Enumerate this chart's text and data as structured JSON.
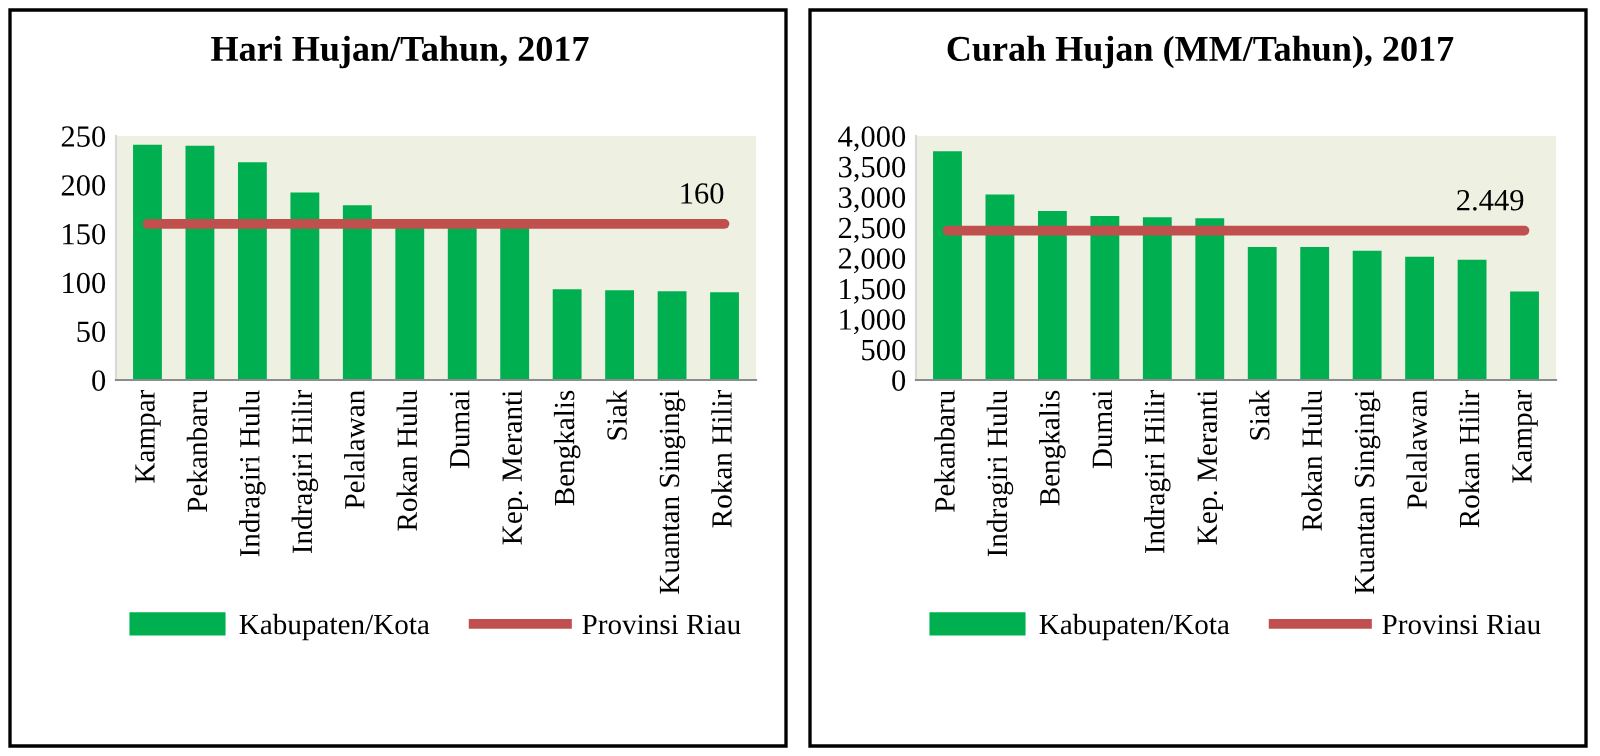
{
  "chart_data": [
    {
      "type": "bar",
      "title": "Hari Hujan/Tahun, 2017",
      "categories": [
        "Kampar",
        "Pekanbaru",
        "Indragiri Hulu",
        "Indragiri Hilir",
        "Pelalawan",
        "Rokan Hulu",
        "Dumai",
        "Kep. Meranti",
        "Bengkalis",
        "Siak",
        "Kuantan Singingi",
        "Rokan Hilir"
      ],
      "series": [
        {
          "name": "Kabupaten/Kota",
          "color": "#00b050",
          "values": [
            241,
            240,
            223,
            192,
            179,
            160,
            160,
            160,
            93,
            92,
            91,
            90
          ]
        },
        {
          "name": "Provinsi Riau",
          "type": "line",
          "color": "#c0504d",
          "values": [
            160,
            160,
            160,
            160,
            160,
            160,
            160,
            160,
            160,
            160,
            160,
            160
          ],
          "value_labels": [
            null,
            null,
            null,
            null,
            null,
            null,
            null,
            null,
            null,
            null,
            null,
            "160"
          ]
        }
      ],
      "ylim": [
        0,
        250
      ],
      "yticks": [
        0,
        50,
        100,
        150,
        200,
        250
      ],
      "grid": false,
      "legend": "bottom",
      "marker": "none"
    },
    {
      "type": "bar",
      "title": "Curah Hujan (MM/Tahun), 2017",
      "categories": [
        "Pekanbaru",
        "Indragiri Hulu",
        "Bengkalis",
        "Dumai",
        "Indragiri Hilir",
        "Kep. Meranti",
        "Siak",
        "Rokan Hulu",
        "Kuantan Singingi",
        "Pelalawan",
        "Rokan Hilir",
        "Kampar"
      ],
      "series": [
        {
          "name": "Kabupaten/Kota",
          "color": "#00b050",
          "values": [
            3750,
            3040,
            2770,
            2690,
            2670,
            2650,
            2180,
            2180,
            2120,
            2020,
            1970,
            1450
          ]
        },
        {
          "name": "Provinsi Riau",
          "type": "line",
          "color": "#c0504d",
          "values": [
            2449,
            2449,
            2449,
            2449,
            2449,
            2449,
            2449,
            2449,
            2449,
            2449,
            2449,
            2449
          ]
        }
      ],
      "annotations": [
        "2.449"
      ],
      "ylim": [
        0,
        4000
      ],
      "yticks": [
        0,
        {
          "value": 500,
          "label": "500"
        },
        {
          "value": 1000,
          "label": "1,000"
        },
        {
          "value": 1500,
          "label": "1,500"
        },
        {
          "value": 2000,
          "label": "2,000"
        },
        {
          "value": 2500,
          "label": "2,500"
        },
        {
          "value": 3000,
          "label": "3,000"
        },
        {
          "value": 3500,
          "label": "3,500"
        },
        {
          "value": 4000,
          "label": "4,000"
        }
      ],
      "grid": false,
      "legend": "bottom",
      "marker": "none"
    }
  ]
}
